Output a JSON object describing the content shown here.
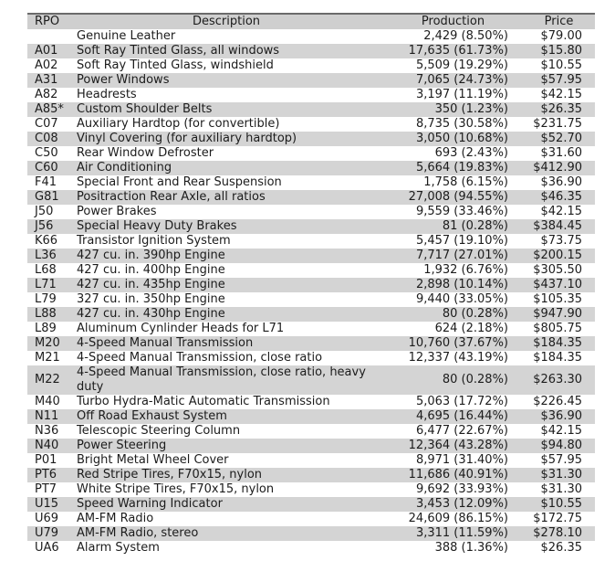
{
  "colors": {
    "header-bg": "#cfcfcf",
    "stripe-bg": "#d4d4d4",
    "top-border": "#6b6b6b",
    "text": "#1c1c1c",
    "page-bg": "#ffffff"
  },
  "table": {
    "columns": [
      {
        "key": "rpo",
        "label": "RPO"
      },
      {
        "key": "description",
        "label": "Description"
      },
      {
        "key": "production",
        "label": "Production"
      },
      {
        "key": "price",
        "label": "Price"
      }
    ],
    "rows": [
      {
        "rpo": "",
        "description": "Genuine Leather",
        "production": "2,429 (8.50%)",
        "price": "$79.00"
      },
      {
        "rpo": "A01",
        "description": "Soft Ray Tinted Glass, all windows",
        "production": "17,635 (61.73%)",
        "price": "$15.80"
      },
      {
        "rpo": "A02",
        "description": "Soft Ray Tinted Glass, windshield",
        "production": "5,509 (19.29%)",
        "price": "$10.55"
      },
      {
        "rpo": "A31",
        "description": "Power Windows",
        "production": "7,065 (24.73%)",
        "price": "$57.95"
      },
      {
        "rpo": "A82",
        "description": "Headrests",
        "production": "3,197 (11.19%)",
        "price": "$42.15"
      },
      {
        "rpo": "A85*",
        "description": "Custom Shoulder Belts",
        "production": "350 (1.23%)",
        "price": "$26.35"
      },
      {
        "rpo": "C07",
        "description": "Auxiliary Hardtop (for convertible)",
        "production": "8,735 (30.58%)",
        "price": "$231.75"
      },
      {
        "rpo": "C08",
        "description": "Vinyl Covering (for auxiliary hardtop)",
        "production": "3,050 (10.68%)",
        "price": "$52.70"
      },
      {
        "rpo": "C50",
        "description": "Rear Window Defroster",
        "production": "693 (2.43%)",
        "price": "$31.60"
      },
      {
        "rpo": "C60",
        "description": "Air Conditioning",
        "production": "5,664 (19.83%)",
        "price": "$412.90"
      },
      {
        "rpo": "F41",
        "description": "Special Front and Rear Suspension",
        "production": "1,758 (6.15%)",
        "price": "$36.90"
      },
      {
        "rpo": "G81",
        "description": "Positraction Rear Axle, all ratios",
        "production": "27,008 (94.55%)",
        "price": "$46.35"
      },
      {
        "rpo": "J50",
        "description": "Power Brakes",
        "production": "9,559 (33.46%)",
        "price": "$42.15"
      },
      {
        "rpo": "J56",
        "description": "Special Heavy Duty Brakes",
        "production": "81 (0.28%)",
        "price": "$384.45"
      },
      {
        "rpo": "K66",
        "description": "Transistor Ignition System",
        "production": "5,457 (19.10%)",
        "price": "$73.75"
      },
      {
        "rpo": "L36",
        "description": "427 cu. in. 390hp Engine",
        "production": "7,717 (27.01%)",
        "price": "$200.15"
      },
      {
        "rpo": "L68",
        "description": "427 cu. in. 400hp Engine",
        "production": "1,932 (6.76%)",
        "price": "$305.50"
      },
      {
        "rpo": "L71",
        "description": "427 cu. in. 435hp Engine",
        "production": "2,898 (10.14%)",
        "price": "$437.10"
      },
      {
        "rpo": "L79",
        "description": "327 cu. in. 350hp Engine",
        "production": "9,440 (33.05%)",
        "price": "$105.35"
      },
      {
        "rpo": "L88",
        "description": "427 cu. in. 430hp Engine",
        "production": "80 (0.28%)",
        "price": "$947.90"
      },
      {
        "rpo": "L89",
        "description": "Aluminum Cynlinder Heads for L71",
        "production": "624 (2.18%)",
        "price": "$805.75"
      },
      {
        "rpo": "M20",
        "description": "4-Speed Manual Transmission",
        "production": "10,760 (37.67%)",
        "price": "$184.35"
      },
      {
        "rpo": "M21",
        "description": "4-Speed Manual Transmission, close ratio",
        "production": "12,337 (43.19%)",
        "price": "$184.35"
      },
      {
        "rpo": "M22",
        "description": "4-Speed Manual Transmission, close ratio, heavy duty",
        "production": "80 (0.28%)",
        "price": "$263.30"
      },
      {
        "rpo": "M40",
        "description": "Turbo Hydra-Matic Automatic Transmission",
        "production": "5,063 (17.72%)",
        "price": "$226.45"
      },
      {
        "rpo": "N11",
        "description": "Off Road Exhaust System",
        "production": "4,695 (16.44%)",
        "price": "$36.90"
      },
      {
        "rpo": "N36",
        "description": "Telescopic Steering Column",
        "production": "6,477 (22.67%)",
        "price": "$42.15"
      },
      {
        "rpo": "N40",
        "description": "Power Steering",
        "production": "12,364 (43.28%)",
        "price": "$94.80"
      },
      {
        "rpo": "P01",
        "description": "Bright Metal Wheel Cover",
        "production": "8,971 (31.40%)",
        "price": "$57.95"
      },
      {
        "rpo": "PT6",
        "description": "Red Stripe Tires, F70x15, nylon",
        "production": "11,686 (40.91%)",
        "price": "$31.30"
      },
      {
        "rpo": "PT7",
        "description": "White Stripe Tires, F70x15, nylon",
        "production": "9,692 (33.93%)",
        "price": "$31.30"
      },
      {
        "rpo": "U15",
        "description": "Speed Warning Indicator",
        "production": "3,453 (12.09%)",
        "price": "$10.55"
      },
      {
        "rpo": "U69",
        "description": "AM-FM Radio",
        "production": "24,609 (86.15%)",
        "price": "$172.75"
      },
      {
        "rpo": "U79",
        "description": "AM-FM Radio, stereo",
        "production": "3,311 (11.59%)",
        "price": "$278.10"
      },
      {
        "rpo": "UA6",
        "description": "Alarm System",
        "production": "388 (1.36%)",
        "price": "$26.35"
      }
    ]
  }
}
